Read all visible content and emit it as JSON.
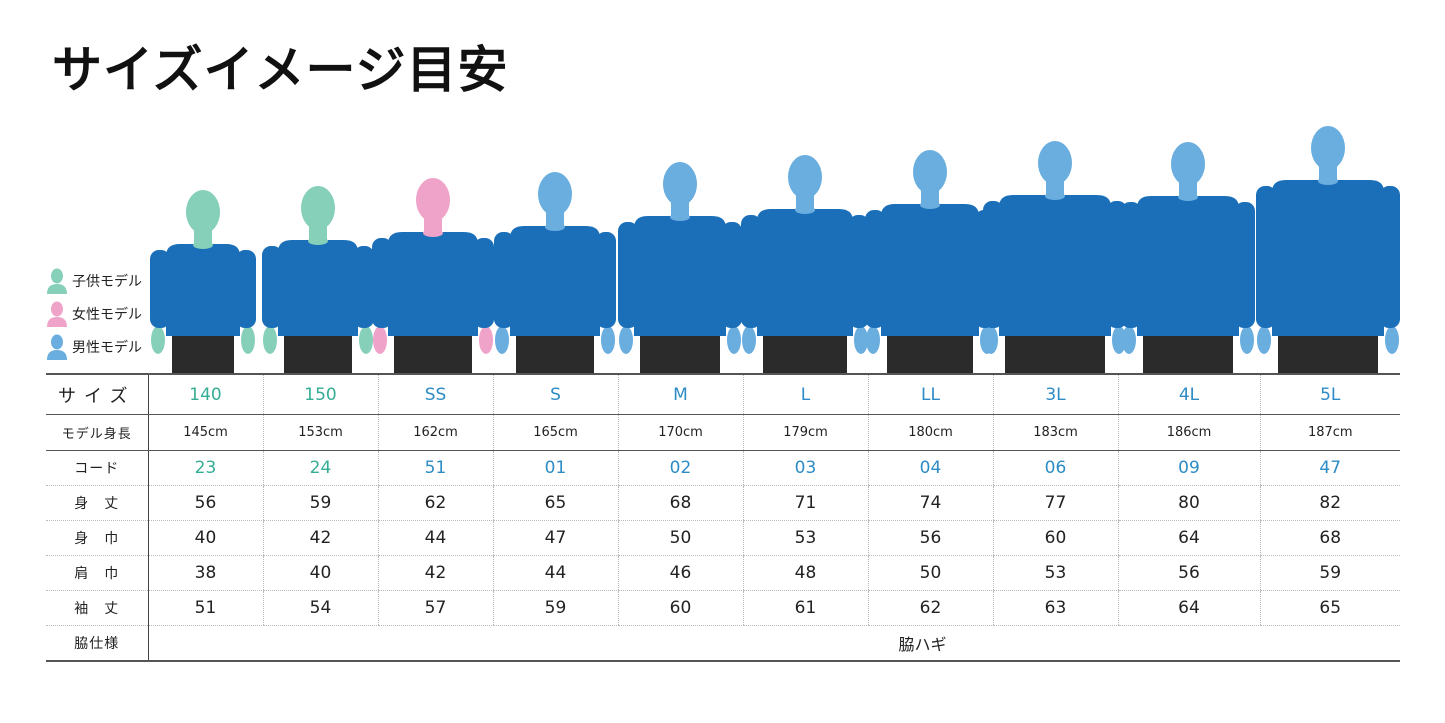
{
  "title": "サイズイメージ目安",
  "colors": {
    "child": "#86cfb9",
    "female": "#f0a3c8",
    "male": "#6aaee0",
    "shirt": "#1a6fb8",
    "shorts": "#2b2b2b",
    "teal_text": "#35ad95",
    "blue_text": "#2d8cc6"
  },
  "legend": [
    {
      "label": "子供モデル",
      "type": "child",
      "icon": "person-icon"
    },
    {
      "label": "女性モデル",
      "type": "female",
      "icon": "person-icon"
    },
    {
      "label": "男性モデル",
      "type": "male",
      "icon": "person-icon"
    }
  ],
  "models": [
    "child",
    "child",
    "female",
    "male",
    "male",
    "male",
    "male",
    "male",
    "male",
    "male"
  ],
  "table": {
    "size_label": "サイズ",
    "sizes": [
      "140",
      "150",
      "SS",
      "S",
      "M",
      "L",
      "LL",
      "3L",
      "4L",
      "5L"
    ],
    "height_label": "モデル身長",
    "heights": [
      "145cm",
      "153cm",
      "162cm",
      "165cm",
      "170cm",
      "179cm",
      "180cm",
      "183cm",
      "186cm",
      "187cm"
    ],
    "code_label": "コード",
    "codes": [
      "23",
      "24",
      "51",
      "01",
      "02",
      "03",
      "04",
      "06",
      "09",
      "47"
    ],
    "measurements": [
      {
        "label": "身　丈",
        "values": [
          "56",
          "59",
          "62",
          "65",
          "68",
          "71",
          "74",
          "77",
          "80",
          "82"
        ]
      },
      {
        "label": "身　巾",
        "values": [
          "40",
          "42",
          "44",
          "47",
          "50",
          "53",
          "56",
          "60",
          "64",
          "68"
        ]
      },
      {
        "label": "肩　巾",
        "values": [
          "38",
          "40",
          "42",
          "44",
          "46",
          "48",
          "50",
          "53",
          "56",
          "59"
        ]
      },
      {
        "label": "袖　丈",
        "values": [
          "51",
          "54",
          "57",
          "59",
          "60",
          "61",
          "62",
          "63",
          "64",
          "65"
        ]
      }
    ],
    "side_label": "脇仕様",
    "side_value": "脇ハギ"
  }
}
